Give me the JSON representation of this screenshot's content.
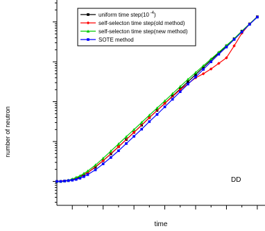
{
  "chart_data": {
    "type": "line",
    "xlabel": "time",
    "ylabel": "number of neutron",
    "annotation": "DD",
    "xlim": [
      0,
      27
    ],
    "ylim": [
      -0.6,
      4.55
    ],
    "y_scale": "log",
    "grid": false,
    "legend_position": "top-left",
    "series": [
      {
        "name": "uniform time step(10",
        "name_superscript": "-4",
        "name_suffix": ")",
        "color": "#000000",
        "marker": "square",
        "x": [
          0,
          0.5,
          1,
          1.5,
          2,
          2.5,
          3,
          3.5,
          4,
          5,
          6,
          7,
          8,
          9,
          10,
          11,
          12,
          13,
          14,
          15,
          16,
          17,
          18,
          19,
          20,
          21,
          22,
          23,
          24,
          25,
          26
        ],
        "y": [
          0,
          0,
          0.01,
          0.02,
          0.04,
          0.07,
          0.11,
          0.16,
          0.22,
          0.36,
          0.52,
          0.69,
          0.87,
          1.05,
          1.23,
          1.41,
          1.6,
          1.78,
          1.96,
          2.14,
          2.32,
          2.5,
          2.68,
          2.86,
          3.04,
          3.22,
          3.4,
          3.58,
          3.77,
          3.95,
          4.13
        ]
      },
      {
        "name": "self-selecton time step(old method)",
        "color": "#ff0000",
        "marker": "diamond",
        "x": [
          0,
          2,
          4,
          6,
          8,
          10,
          12,
          14,
          16,
          18,
          19,
          20,
          21,
          22,
          23,
          24,
          25,
          26
        ],
        "y": [
          0,
          0.04,
          0.22,
          0.52,
          0.87,
          1.23,
          1.6,
          1.96,
          2.3,
          2.6,
          2.7,
          2.82,
          2.96,
          3.1,
          3.4,
          3.72,
          3.95,
          4.13
        ]
      },
      {
        "name": "self-selecton time step(new method)",
        "color": "#00cc00",
        "marker": "triangle",
        "x": [
          0,
          0.5,
          1,
          1.5,
          2,
          2.5,
          3,
          3.5,
          4,
          5,
          6,
          7,
          8,
          9,
          10,
          11,
          12,
          13,
          14,
          15,
          16,
          17,
          18,
          19,
          20,
          21,
          22,
          23,
          24,
          25,
          26
        ],
        "y": [
          0,
          0,
          0.01,
          0.03,
          0.06,
          0.1,
          0.14,
          0.2,
          0.26,
          0.41,
          0.58,
          0.76,
          0.94,
          1.12,
          1.3,
          1.48,
          1.66,
          1.84,
          2.02,
          2.2,
          2.38,
          2.56,
          2.73,
          2.9,
          3.07,
          3.24,
          3.41,
          3.58,
          3.77,
          3.95,
          4.13
        ]
      },
      {
        "name": "SOTE method",
        "color": "#0000ff",
        "marker": "square",
        "x": [
          0,
          0.5,
          1,
          1.5,
          2,
          2.5,
          3,
          3.5,
          4,
          5,
          6,
          7,
          8,
          9,
          10,
          11,
          12,
          13,
          14,
          15,
          16,
          17,
          18,
          19,
          20,
          21,
          22,
          23,
          24,
          25,
          26
        ],
        "y": [
          0,
          0,
          0.01,
          0.02,
          0.03,
          0.05,
          0.08,
          0.12,
          0.17,
          0.29,
          0.44,
          0.6,
          0.77,
          0.95,
          1.13,
          1.31,
          1.5,
          1.68,
          1.87,
          2.06,
          2.25,
          2.44,
          2.62,
          2.81,
          3.0,
          3.19,
          3.37,
          3.56,
          3.75,
          3.94,
          4.12
        ]
      }
    ]
  }
}
